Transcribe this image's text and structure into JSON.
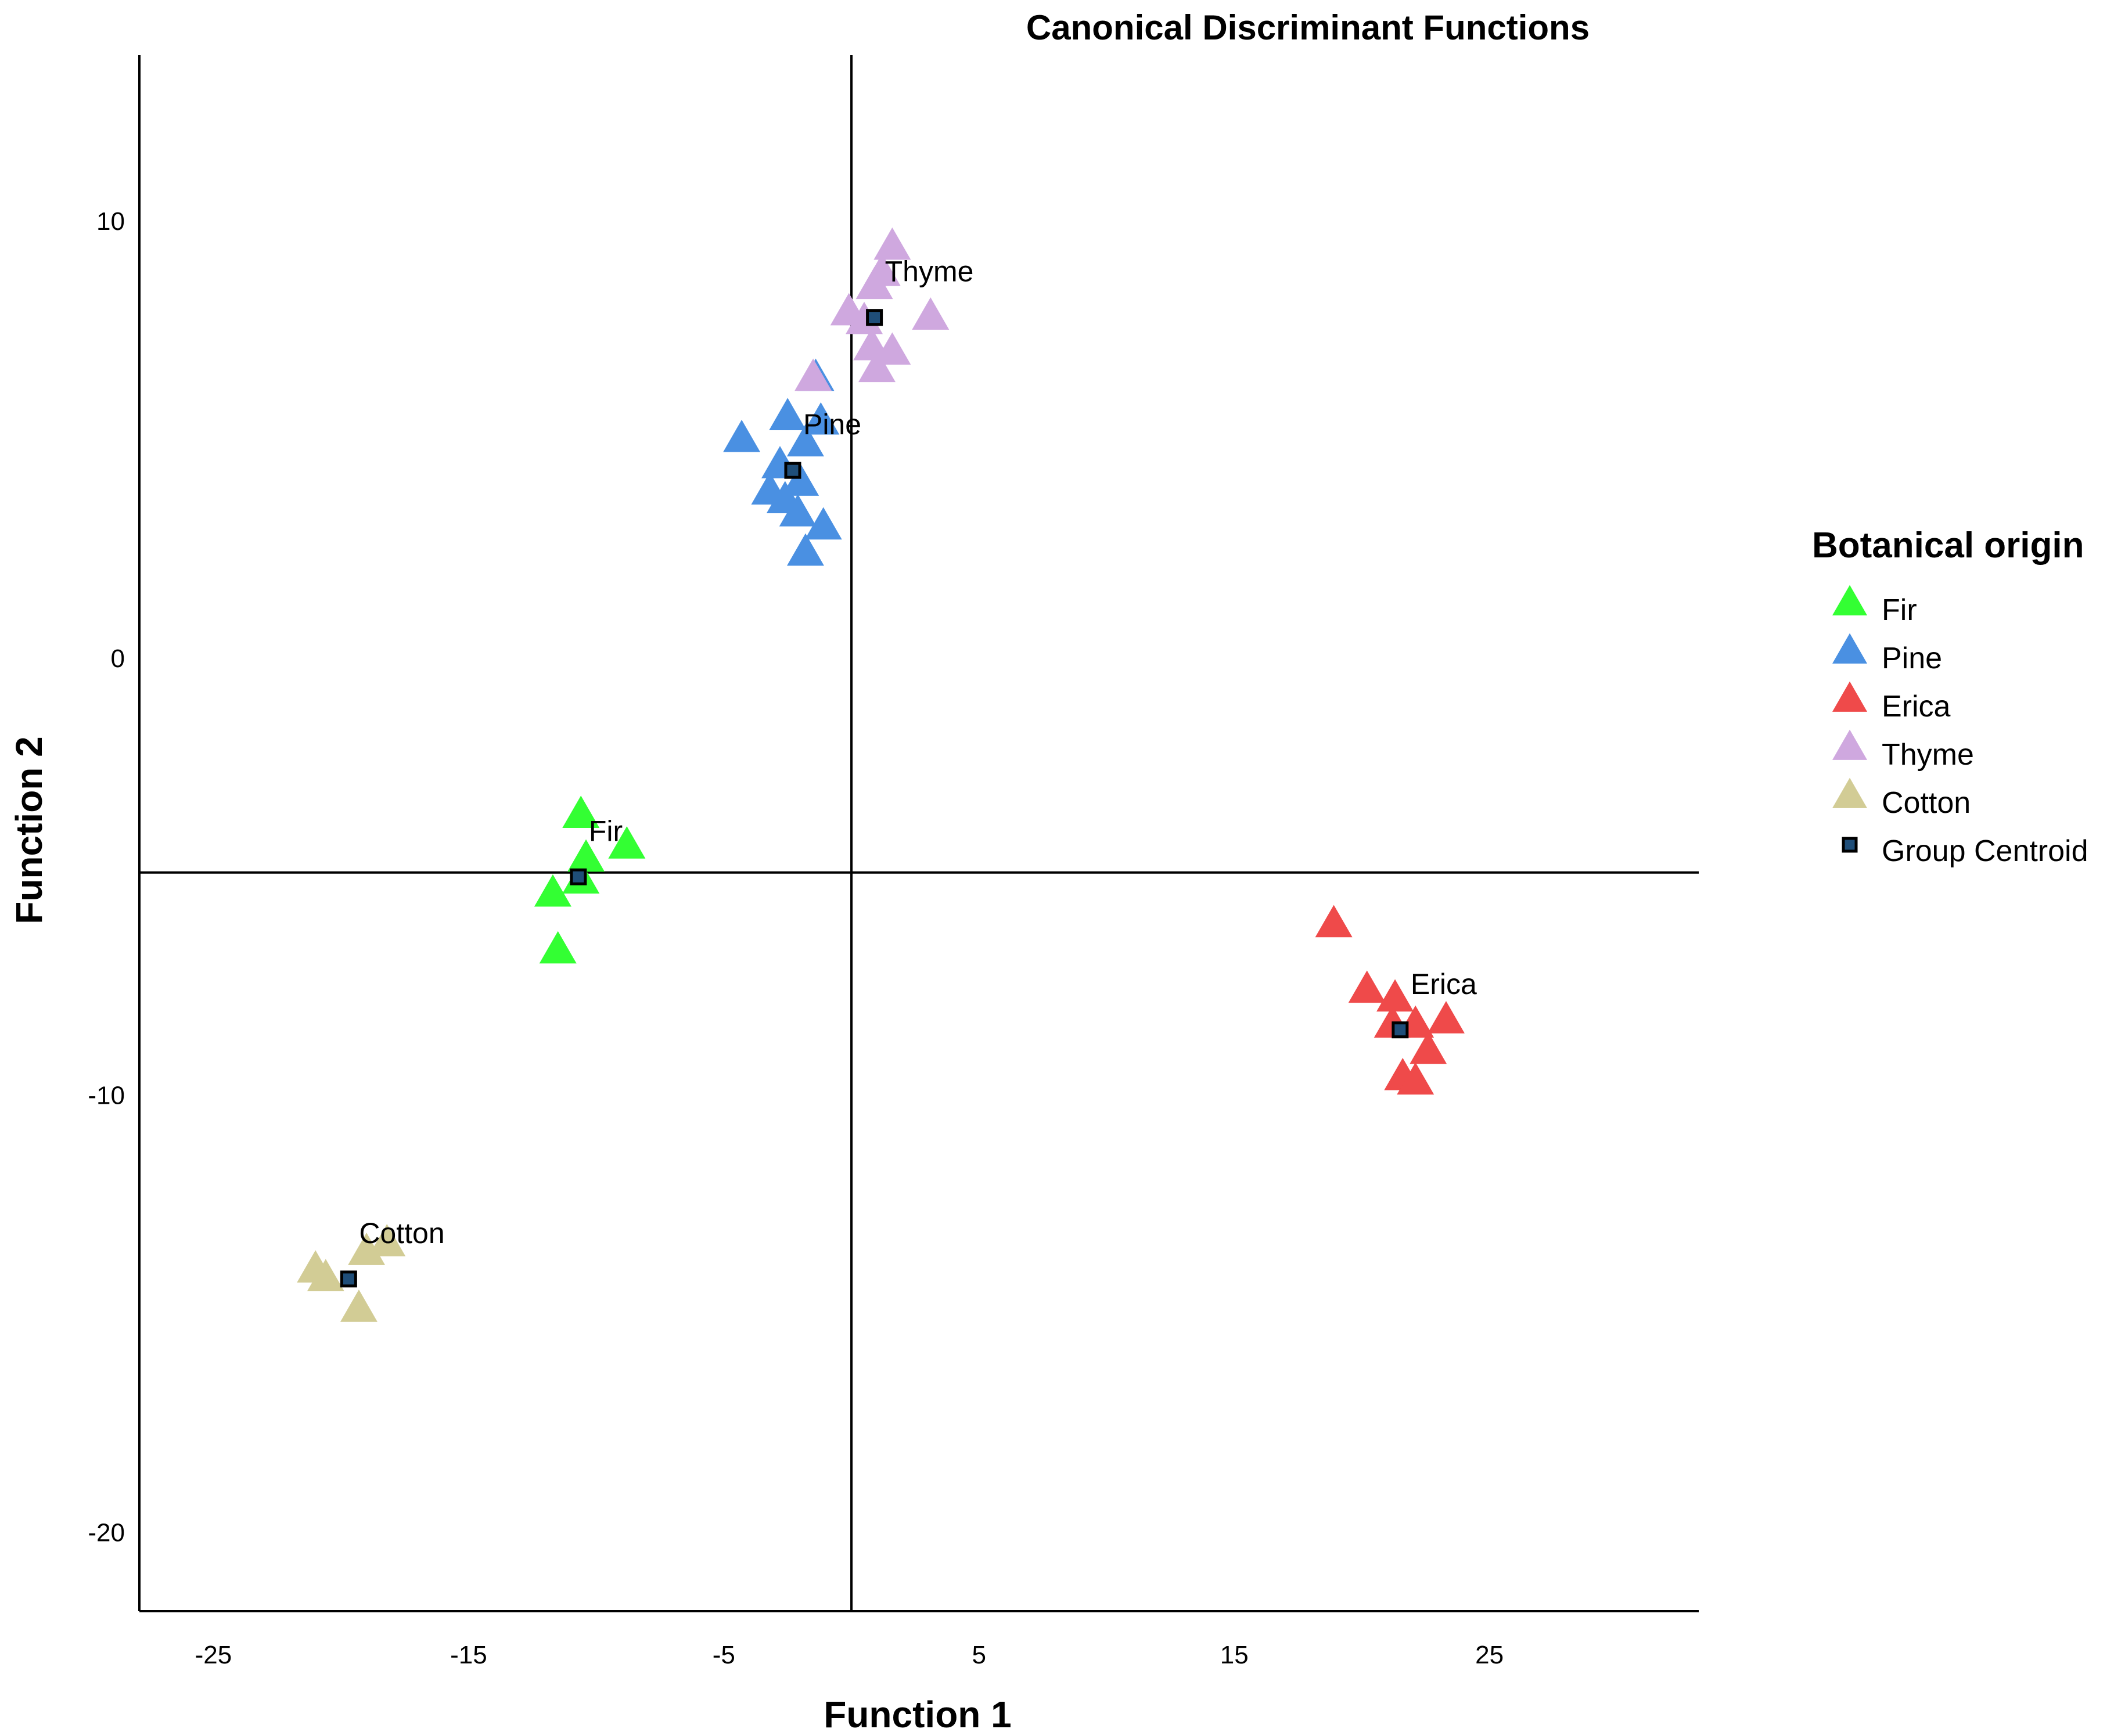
{
  "chart_data": {
    "type": "scatter",
    "title": "Canonical Discriminant Functions",
    "xlabel": "Function 1",
    "ylabel": "Function 2",
    "xlim": [
      -27.9,
      33.2
    ],
    "ylim": [
      -21.8,
      13.8
    ],
    "xticks": [
      -25,
      -15,
      -5,
      5,
      15,
      25
    ],
    "yticks": [
      10,
      0,
      -10,
      -20
    ],
    "reference_lines": {
      "x": 0,
      "y": -4.9
    },
    "legend": {
      "title": "Botanical origin",
      "position": "right"
    },
    "series": [
      {
        "name": "Fir",
        "color": "#33ff33",
        "marker": "triangle",
        "points": [
          [
            -10.6,
            -3.6
          ],
          [
            -8.8,
            -4.3
          ],
          [
            -10.4,
            -4.6
          ],
          [
            -10.6,
            -5.1
          ],
          [
            -11.7,
            -5.4
          ],
          [
            -11.5,
            -6.7
          ]
        ]
      },
      {
        "name": "Pine",
        "color": "#4a90e2",
        "marker": "triangle",
        "points": [
          [
            -1.4,
            6.4
          ],
          [
            -2.5,
            5.5
          ],
          [
            -1.2,
            5.4
          ],
          [
            -4.3,
            5.0
          ],
          [
            -1.8,
            4.9
          ],
          [
            -2.8,
            4.4
          ],
          [
            -2.0,
            4.0
          ],
          [
            -3.2,
            3.8
          ],
          [
            -2.6,
            3.6
          ],
          [
            -2.1,
            3.3
          ],
          [
            -1.1,
            3.0
          ],
          [
            -1.8,
            2.4
          ]
        ]
      },
      {
        "name": "Erica",
        "color": "#ef4a4a",
        "marker": "triangle",
        "points": [
          [
            18.9,
            -6.1
          ],
          [
            20.2,
            -7.6
          ],
          [
            21.3,
            -7.8
          ],
          [
            21.2,
            -8.4
          ],
          [
            23.3,
            -8.3
          ],
          [
            22.1,
            -8.4
          ],
          [
            22.6,
            -9.0
          ],
          [
            21.6,
            -9.6
          ],
          [
            22.1,
            -9.7
          ]
        ]
      },
      {
        "name": "Thyme",
        "color": "#cfa8df",
        "marker": "triangle",
        "points": [
          [
            1.6,
            9.4
          ],
          [
            1.2,
            8.8
          ],
          [
            0.9,
            8.5
          ],
          [
            -0.1,
            7.9
          ],
          [
            0.5,
            7.7
          ],
          [
            3.1,
            7.8
          ],
          [
            0.8,
            7.1
          ],
          [
            1.6,
            7.0
          ],
          [
            1.0,
            6.6
          ],
          [
            -1.5,
            6.4
          ]
        ]
      },
      {
        "name": "Cotton",
        "color": "#d2cc95",
        "marker": "triangle",
        "points": [
          [
            -18.2,
            -13.4
          ],
          [
            -19.0,
            -13.6
          ],
          [
            -21.0,
            -14.0
          ],
          [
            -20.6,
            -14.2
          ],
          [
            -19.3,
            -14.9
          ]
        ]
      }
    ],
    "centroids": [
      {
        "name": "Fir",
        "x": -10.7,
        "y": -5.0
      },
      {
        "name": "Pine",
        "x": -2.3,
        "y": 4.3
      },
      {
        "name": "Erica",
        "x": 21.5,
        "y": -8.5
      },
      {
        "name": "Thyme",
        "x": 0.9,
        "y": 7.8
      },
      {
        "name": "Cotton",
        "x": -19.7,
        "y": -14.2
      }
    ],
    "centroid_legend_label": "Group Centroid",
    "centroid_color": "#1f4e79"
  }
}
